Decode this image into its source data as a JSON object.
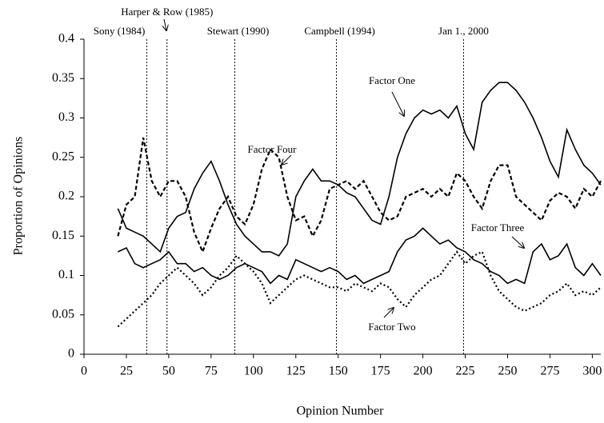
{
  "chart_data": {
    "type": "line",
    "xlabel": "Opinion Number",
    "ylabel": "Proportion of Opinions",
    "xlim": [
      0,
      305
    ],
    "ylim": [
      0,
      0.4
    ],
    "xticks": [
      0,
      25,
      50,
      75,
      100,
      125,
      150,
      175,
      200,
      225,
      250,
      275,
      300
    ],
    "yticks": [
      0,
      0.05,
      0.1,
      0.15,
      0.2,
      0.25,
      0.3,
      0.35,
      0.4
    ],
    "grid": false,
    "events": [
      {
        "x": 37,
        "label": "Sony (1984)"
      },
      {
        "x": 49,
        "label": "Harper & Row (1985)"
      },
      {
        "x": 89,
        "label": "Stewart (1990)"
      },
      {
        "x": 149,
        "label": "Campbell (1994)"
      },
      {
        "x": 224,
        "label": "Jan 1., 2000"
      }
    ],
    "x": [
      20,
      25,
      30,
      35,
      40,
      45,
      50,
      55,
      60,
      65,
      70,
      75,
      80,
      85,
      90,
      95,
      100,
      105,
      110,
      115,
      120,
      125,
      130,
      135,
      140,
      145,
      150,
      155,
      160,
      165,
      170,
      175,
      180,
      185,
      190,
      195,
      200,
      205,
      210,
      215,
      220,
      225,
      230,
      235,
      240,
      245,
      250,
      255,
      260,
      265,
      270,
      275,
      280,
      285,
      290,
      295,
      300,
      305
    ],
    "series": [
      {
        "name": "Factor One",
        "color": "#000000",
        "dash": "none",
        "values": [
          0.185,
          0.16,
          0.155,
          0.15,
          0.14,
          0.13,
          0.16,
          0.175,
          0.18,
          0.21,
          0.23,
          0.245,
          0.22,
          0.19,
          0.165,
          0.15,
          0.14,
          0.13,
          0.13,
          0.125,
          0.14,
          0.2,
          0.22,
          0.235,
          0.22,
          0.22,
          0.215,
          0.205,
          0.2,
          0.185,
          0.17,
          0.165,
          0.2,
          0.25,
          0.28,
          0.3,
          0.31,
          0.305,
          0.31,
          0.3,
          0.315,
          0.28,
          0.26,
          0.32,
          0.335,
          0.345,
          0.345,
          0.335,
          0.32,
          0.3,
          0.275,
          0.245,
          0.225,
          0.285,
          0.26,
          0.24,
          0.23,
          0.215
        ]
      },
      {
        "name": "Factor Two",
        "color": "#000000",
        "dash": "2,3",
        "values": [
          0.035,
          0.045,
          0.055,
          0.065,
          0.075,
          0.09,
          0.1,
          0.11,
          0.1,
          0.09,
          0.075,
          0.085,
          0.1,
          0.11,
          0.125,
          0.115,
          0.105,
          0.09,
          0.065,
          0.075,
          0.085,
          0.095,
          0.1,
          0.095,
          0.09,
          0.085,
          0.085,
          0.08,
          0.09,
          0.085,
          0.08,
          0.09,
          0.085,
          0.07,
          0.06,
          0.075,
          0.085,
          0.095,
          0.1,
          0.115,
          0.13,
          0.115,
          0.125,
          0.13,
          0.1,
          0.08,
          0.07,
          0.06,
          0.055,
          0.06,
          0.065,
          0.075,
          0.08,
          0.09,
          0.075,
          0.08,
          0.075,
          0.085
        ]
      },
      {
        "name": "Factor Three",
        "color": "#000000",
        "dash": "none",
        "values": [
          0.13,
          0.135,
          0.115,
          0.11,
          0.115,
          0.12,
          0.13,
          0.115,
          0.115,
          0.105,
          0.11,
          0.1,
          0.095,
          0.1,
          0.11,
          0.115,
          0.11,
          0.105,
          0.09,
          0.1,
          0.095,
          0.12,
          0.115,
          0.11,
          0.105,
          0.11,
          0.105,
          0.095,
          0.1,
          0.09,
          0.095,
          0.1,
          0.105,
          0.13,
          0.145,
          0.15,
          0.16,
          0.15,
          0.14,
          0.145,
          0.135,
          0.13,
          0.12,
          0.115,
          0.105,
          0.1,
          0.09,
          0.095,
          0.09,
          0.13,
          0.14,
          0.12,
          0.125,
          0.14,
          0.11,
          0.1,
          0.115,
          0.1
        ]
      },
      {
        "name": "Factor Four",
        "color": "#000000",
        "dash": "5,3",
        "values": [
          0.15,
          0.19,
          0.2,
          0.275,
          0.22,
          0.2,
          0.22,
          0.22,
          0.2,
          0.155,
          0.13,
          0.16,
          0.185,
          0.2,
          0.175,
          0.165,
          0.19,
          0.235,
          0.26,
          0.25,
          0.2,
          0.17,
          0.175,
          0.15,
          0.17,
          0.21,
          0.215,
          0.22,
          0.21,
          0.22,
          0.2,
          0.18,
          0.17,
          0.175,
          0.2,
          0.205,
          0.21,
          0.2,
          0.21,
          0.2,
          0.23,
          0.22,
          0.2,
          0.185,
          0.22,
          0.24,
          0.24,
          0.2,
          0.19,
          0.18,
          0.17,
          0.195,
          0.205,
          0.2,
          0.185,
          0.21,
          0.2,
          0.22
        ]
      }
    ]
  }
}
